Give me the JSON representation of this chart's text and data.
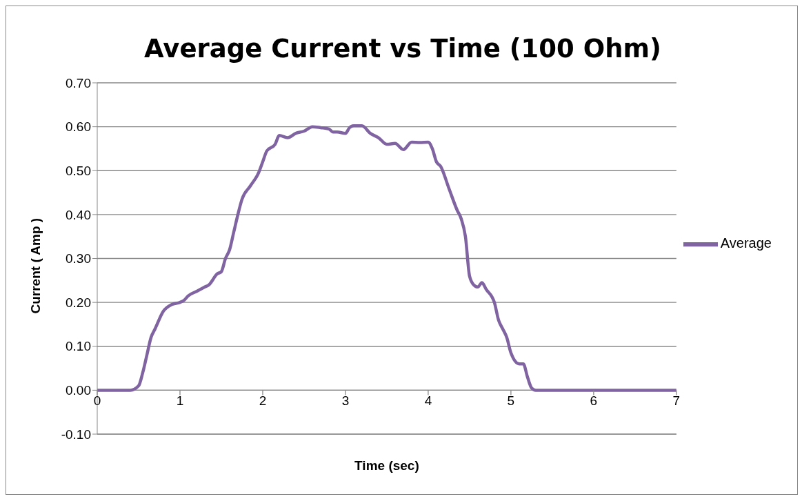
{
  "chart_data": {
    "type": "line",
    "title": "Average Current vs Time (100 Ohm)",
    "xlabel": "Time (sec)",
    "ylabel": "Current ( Amp )",
    "series": [
      {
        "name": "Average",
        "color": "#8064a2",
        "x": [
          0,
          0.3,
          0.4,
          0.5,
          0.55,
          0.6,
          0.65,
          0.7,
          0.8,
          0.9,
          1.0,
          1.05,
          1.1,
          1.2,
          1.3,
          1.35,
          1.45,
          1.5,
          1.55,
          1.6,
          1.65,
          1.7,
          1.75,
          1.85,
          1.95,
          2.0,
          2.05,
          2.15,
          2.2,
          2.3,
          2.4,
          2.5,
          2.6,
          2.7,
          2.8,
          2.85,
          2.9,
          3.0,
          3.05,
          3.1,
          3.2,
          3.3,
          3.4,
          3.5,
          3.6,
          3.7,
          3.8,
          3.9,
          4.0,
          4.05,
          4.1,
          4.15,
          4.25,
          4.35,
          4.4,
          4.45,
          4.5,
          4.55,
          4.6,
          4.65,
          4.7,
          4.8,
          4.85,
          4.9,
          4.95,
          5.0,
          5.1,
          5.15,
          5.2,
          5.25,
          5.3,
          6.0,
          7.0
        ],
        "values": [
          0,
          0,
          0,
          0.01,
          0.04,
          0.08,
          0.12,
          0.14,
          0.18,
          0.195,
          0.2,
          0.205,
          0.215,
          0.225,
          0.235,
          0.24,
          0.265,
          0.27,
          0.3,
          0.32,
          0.36,
          0.4,
          0.435,
          0.465,
          0.495,
          0.52,
          0.545,
          0.56,
          0.58,
          0.575,
          0.585,
          0.59,
          0.6,
          0.598,
          0.595,
          0.588,
          0.588,
          0.585,
          0.598,
          0.602,
          0.602,
          0.585,
          0.575,
          0.56,
          0.562,
          0.548,
          0.565,
          0.564,
          0.565,
          0.55,
          0.52,
          0.51,
          0.46,
          0.41,
          0.39,
          0.35,
          0.26,
          0.24,
          0.235,
          0.245,
          0.23,
          0.2,
          0.16,
          0.14,
          0.12,
          0.085,
          0.06,
          0.06,
          0.03,
          0.005,
          0,
          0,
          0
        ]
      }
    ],
    "xlim": [
      0,
      7
    ],
    "xticks": [
      0,
      1,
      2,
      3,
      4,
      5,
      6,
      7
    ],
    "ylim": [
      -0.1,
      0.7
    ],
    "yticks": [
      {
        "value": -0.1,
        "label": "-0.10"
      },
      {
        "value": 0,
        "label": "0.00"
      },
      {
        "value": 0.1,
        "label": "0.10"
      },
      {
        "value": 0.2,
        "label": "0.20"
      },
      {
        "value": 0.3,
        "label": "0.30"
      },
      {
        "value": 0.4,
        "label": "0.40"
      },
      {
        "value": 0.5,
        "label": "0.50"
      },
      {
        "value": 0.6,
        "label": "0.60"
      },
      {
        "value": 0.7,
        "label": "0.70"
      }
    ],
    "grid": "y",
    "legend": "right",
    "marker": "none",
    "line_style": "solid"
  }
}
